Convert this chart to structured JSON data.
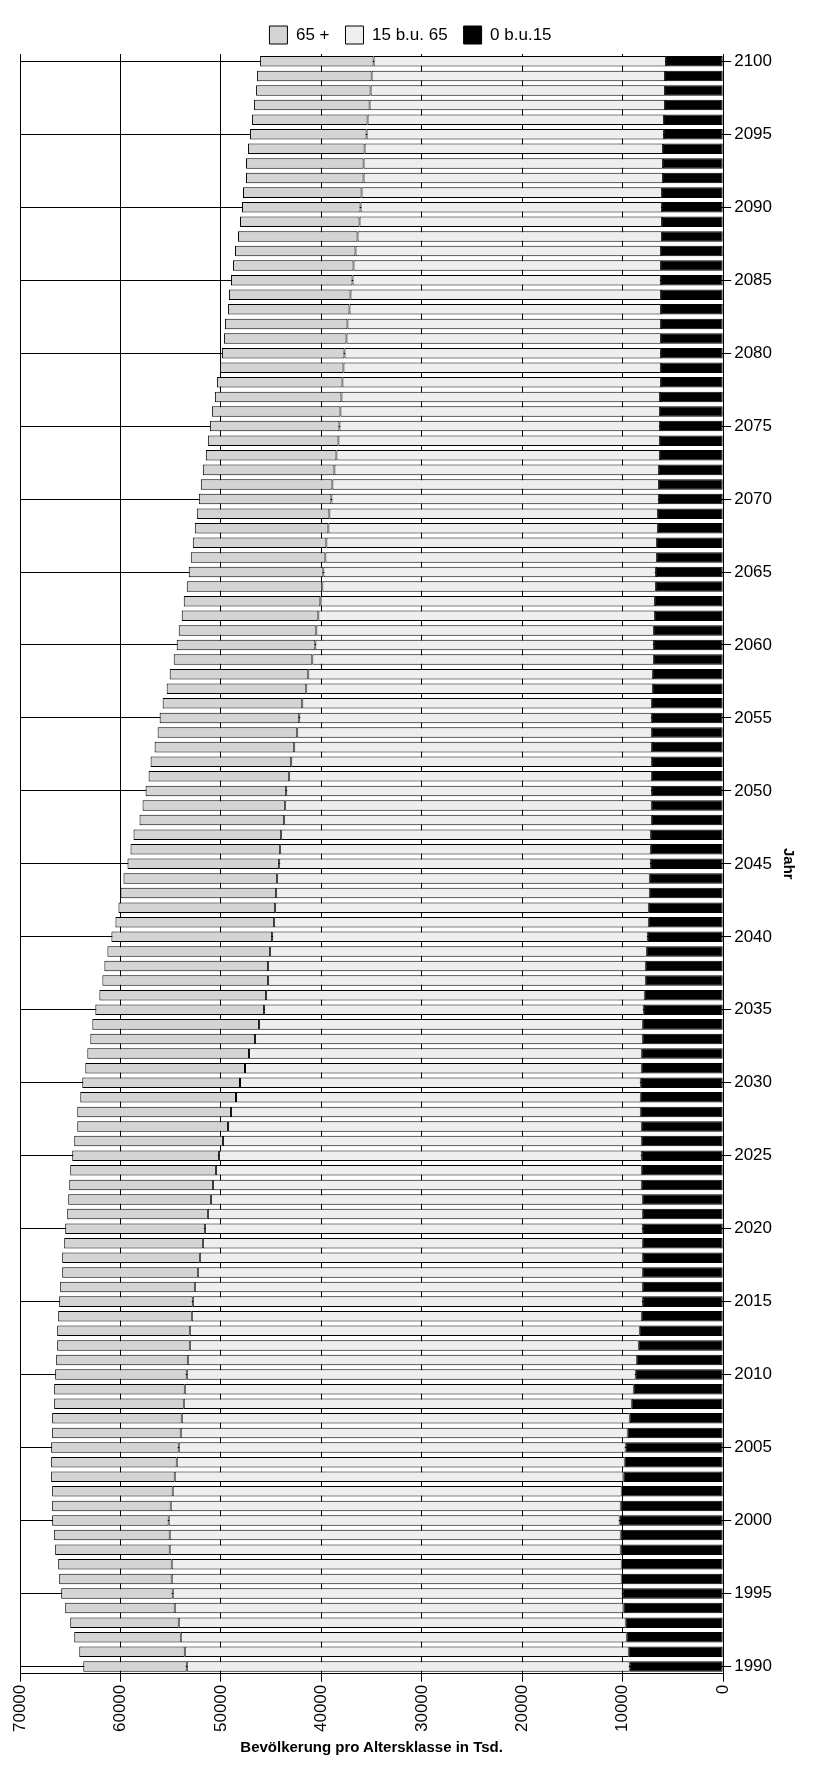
{
  "chart_data": {
    "type": "bar",
    "orientation": "horizontal",
    "stacked": true,
    "xlabel": "Bevölkerung pro Altersklasse in Tsd.",
    "ylabel": "Jahr",
    "categories": [
      "2100",
      null,
      null,
      null,
      null,
      "2095",
      null,
      null,
      null,
      null,
      "2090",
      null,
      null,
      null,
      null,
      "2085",
      null,
      null,
      null,
      null,
      "2080",
      null,
      null,
      null,
      null,
      "2075",
      null,
      null,
      null,
      null,
      "2070",
      null,
      null,
      null,
      null,
      "2065",
      null,
      null,
      null,
      null,
      "2060",
      null,
      null,
      null,
      null,
      "2055",
      null,
      null,
      null,
      null,
      "2050",
      null,
      null,
      null,
      null,
      "2045",
      null,
      null,
      null,
      null,
      "2040",
      null,
      null,
      null,
      null,
      "2035",
      null,
      null,
      null,
      null,
      "2030",
      null,
      null,
      null,
      null,
      "2025",
      null,
      null,
      null,
      null,
      "2020",
      null,
      null,
      null,
      null,
      "2015",
      null,
      null,
      null,
      null,
      "2010",
      null,
      null,
      null,
      null,
      "2005",
      null,
      null,
      null,
      null,
      "2000",
      null,
      null,
      null,
      null,
      "1995",
      null,
      null,
      null,
      null,
      "1990"
    ],
    "series": [
      {
        "name": "0 b.u.15",
        "color": "#000000",
        "values": [
          5700,
          5800,
          5800,
          5800,
          5900,
          5900,
          6000,
          6000,
          6000,
          6100,
          6100,
          6100,
          6100,
          6200,
          6200,
          6200,
          6200,
          6200,
          6200,
          6200,
          6200,
          6200,
          6200,
          6300,
          6300,
          6300,
          6300,
          6300,
          6400,
          6400,
          6400,
          6500,
          6500,
          6600,
          6600,
          6700,
          6700,
          6800,
          6800,
          6900,
          6900,
          6900,
          7000,
          7000,
          7100,
          7100,
          7100,
          7100,
          7100,
          7100,
          7100,
          7100,
          7100,
          7200,
          7200,
          7200,
          7300,
          7300,
          7400,
          7400,
          7500,
          7600,
          7700,
          7700,
          7800,
          7900,
          8000,
          8000,
          8100,
          8100,
          8200,
          8200,
          8200,
          8100,
          8100,
          8100,
          8100,
          8100,
          8000,
          8000,
          8000,
          8000,
          8000,
          8000,
          8000,
          8000,
          8100,
          8300,
          8400,
          8600,
          8700,
          8900,
          9100,
          9300,
          9500,
          9700,
          9800,
          9900,
          10100,
          10200,
          10300,
          10200,
          10200,
          10100,
          10100,
          10000,
          9900,
          9700,
          9600,
          9400,
          9300
        ]
      },
      {
        "name": "15 b.u. 65",
        "color": "#eeeeee",
        "values": [
          29100,
          29200,
          29300,
          29400,
          29500,
          29600,
          29700,
          29800,
          29800,
          29900,
          30000,
          30100,
          30300,
          30400,
          30600,
          30700,
          30900,
          31000,
          31200,
          31300,
          31500,
          31600,
          31700,
          31700,
          31800,
          31900,
          32000,
          32200,
          32300,
          32500,
          32600,
          32700,
          32800,
          32900,
          33000,
          33100,
          33200,
          33300,
          33500,
          33600,
          33700,
          34000,
          34300,
          34500,
          34800,
          35100,
          35300,
          35600,
          35900,
          36100,
          36400,
          36500,
          36600,
          36800,
          36900,
          37000,
          37100,
          37200,
          37200,
          37300,
          37400,
          37500,
          37600,
          37600,
          37700,
          37800,
          38200,
          38600,
          39100,
          39500,
          39900,
          40300,
          40800,
          41200,
          41700,
          42100,
          42400,
          42700,
          43000,
          43300,
          43600,
          43800,
          44100,
          44300,
          44600,
          44800,
          44800,
          44800,
          44700,
          44700,
          44700,
          44700,
          44600,
          44600,
          44500,
          44500,
          44600,
          44700,
          44700,
          44800,
          44900,
          44900,
          44900,
          44800,
          44800,
          44800,
          44700,
          44500,
          44400,
          44200,
          44100
        ]
      },
      {
        "name": "65 +",
        "color": "#d4d4d4",
        "values": [
          11300,
          11400,
          11400,
          11500,
          11500,
          11600,
          11600,
          11700,
          11700,
          11800,
          11800,
          11900,
          11900,
          12000,
          12000,
          12100,
          12100,
          12100,
          12200,
          12200,
          12200,
          12300,
          12500,
          12600,
          12800,
          12900,
          13000,
          13000,
          13100,
          13100,
          13200,
          13200,
          13300,
          13300,
          13400,
          13400,
          13500,
          13600,
          13600,
          13700,
          13800,
          13800,
          13800,
          13900,
          13900,
          13900,
          13900,
          13900,
          14000,
          14000,
          14000,
          14200,
          14400,
          14700,
          14900,
          15100,
          15300,
          15500,
          15600,
          15800,
          16000,
          16200,
          16300,
          16500,
          16600,
          16800,
          16600,
          16400,
          16100,
          15900,
          15700,
          15500,
          15300,
          15000,
          14800,
          14600,
          14500,
          14300,
          14200,
          14000,
          13900,
          13800,
          13700,
          13500,
          13400,
          13300,
          13300,
          13200,
          13200,
          13100,
          13100,
          13000,
          12900,
          12900,
          12800,
          12700,
          12500,
          12300,
          12000,
          11800,
          11600,
          11500,
          11400,
          11300,
          11200,
          11100,
          10900,
          10800,
          10600,
          10500,
          10300
        ]
      }
    ],
    "xlim": [
      70000,
      0
    ],
    "xticks": [
      70000,
      60000,
      50000,
      40000,
      30000,
      20000,
      10000,
      0
    ],
    "grid": true,
    "legend": "top"
  }
}
